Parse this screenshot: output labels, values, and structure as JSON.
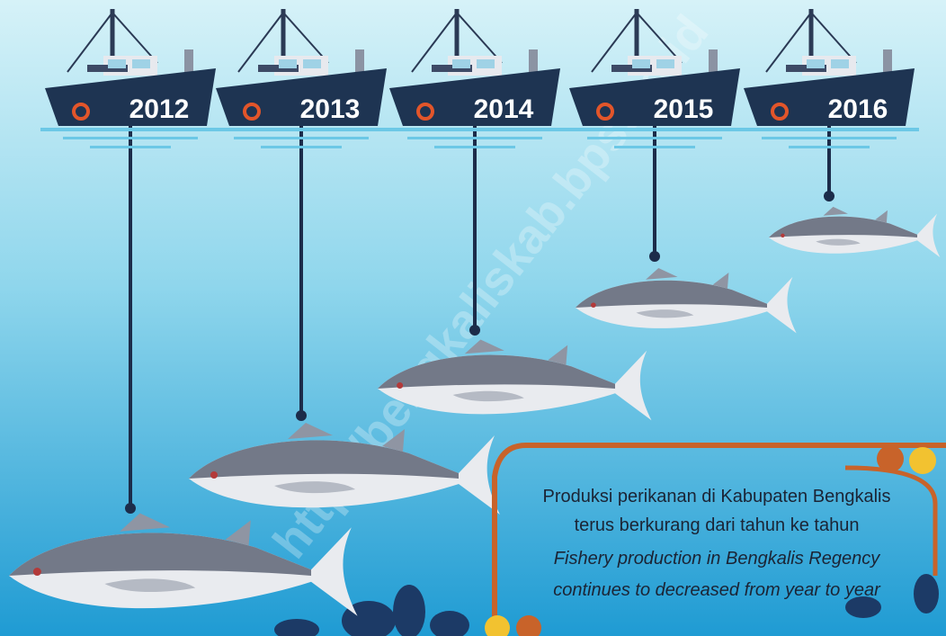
{
  "years": [
    "2012",
    "2013",
    "2014",
    "2015",
    "2016"
  ],
  "caption": {
    "id_line1": "Produksi perikanan di Kabupaten Bengkalis",
    "id_line2": "terus berkurang dari tahun ke tahun",
    "en_line1": "Fishery production in Bengkalis Regency",
    "en_line2": "continues to decreased from year to year"
  },
  "watermark": "http://bengkaliskab.bps.go.id"
}
